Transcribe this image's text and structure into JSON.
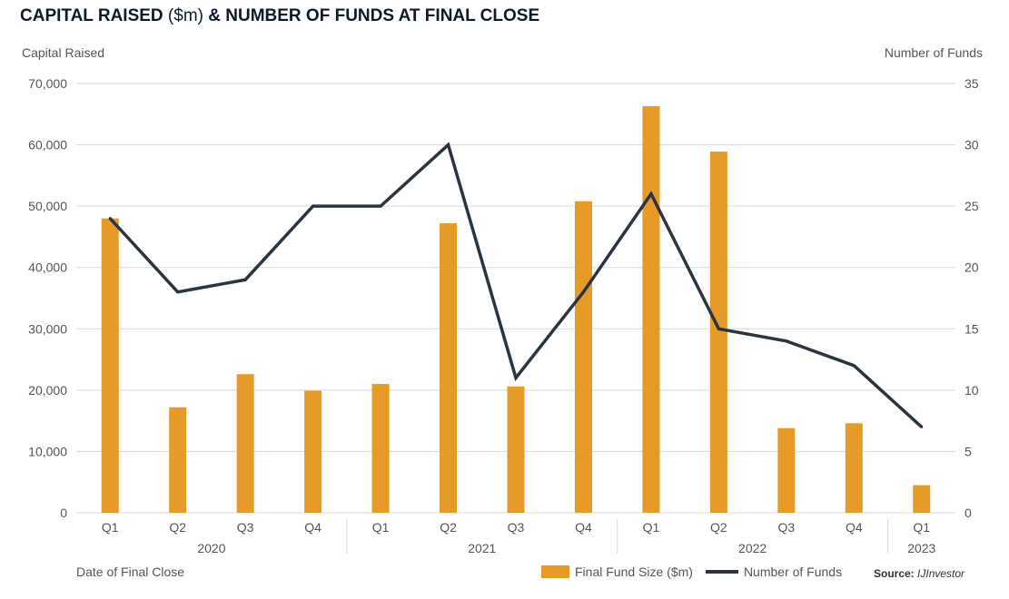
{
  "title": {
    "part1": "CAPITAL RAISED",
    "part2": "($m)",
    "part3": "& NUMBER OF FUNDS AT FINAL CLOSE"
  },
  "colors": {
    "bar": "#e69a27",
    "line": "#2b3542",
    "grid": "#d9d9d9"
  },
  "legend": {
    "bar_label": "Final Fund Size ($m)",
    "line_label": "Number of Funds"
  },
  "source": {
    "label": "Source:",
    "name": "IJInvestor"
  },
  "chart_data": {
    "type": "bar",
    "title": "",
    "ylabel": "Capital Raised",
    "y2label": "Number of Funds",
    "xlabel": "Date of Final Close",
    "ylim": [
      0,
      70000
    ],
    "y2lim": [
      0,
      35
    ],
    "yticks": [
      "0",
      "10,000",
      "20,000",
      "30,000",
      "40,000",
      "50,000",
      "60,000",
      "70,000"
    ],
    "y2ticks": [
      "0",
      "5",
      "10",
      "15",
      "20",
      "25",
      "30",
      "35"
    ],
    "grid": true,
    "categories": [
      "Q1",
      "Q2",
      "Q3",
      "Q4",
      "Q1",
      "Q2",
      "Q3",
      "Q4",
      "Q1",
      "Q2",
      "Q3",
      "Q4",
      "Q1"
    ],
    "groups": [
      {
        "label": "2020",
        "count": 4
      },
      {
        "label": "2021",
        "count": 4
      },
      {
        "label": "2022",
        "count": 4
      },
      {
        "label": "2023",
        "count": 1
      }
    ],
    "series": [
      {
        "name": "Final Fund Size ($m)",
        "type": "bar",
        "axis": "left",
        "values": [
          48000,
          17200,
          22600,
          19900,
          21000,
          47200,
          20600,
          50800,
          66300,
          58900,
          13800,
          14600,
          4500
        ]
      },
      {
        "name": "Number of Funds",
        "type": "line",
        "axis": "right",
        "values": [
          24,
          18,
          19,
          25,
          25,
          30,
          11,
          18,
          26,
          15,
          14,
          12,
          7
        ]
      }
    ],
    "legend_position": "bottom"
  }
}
